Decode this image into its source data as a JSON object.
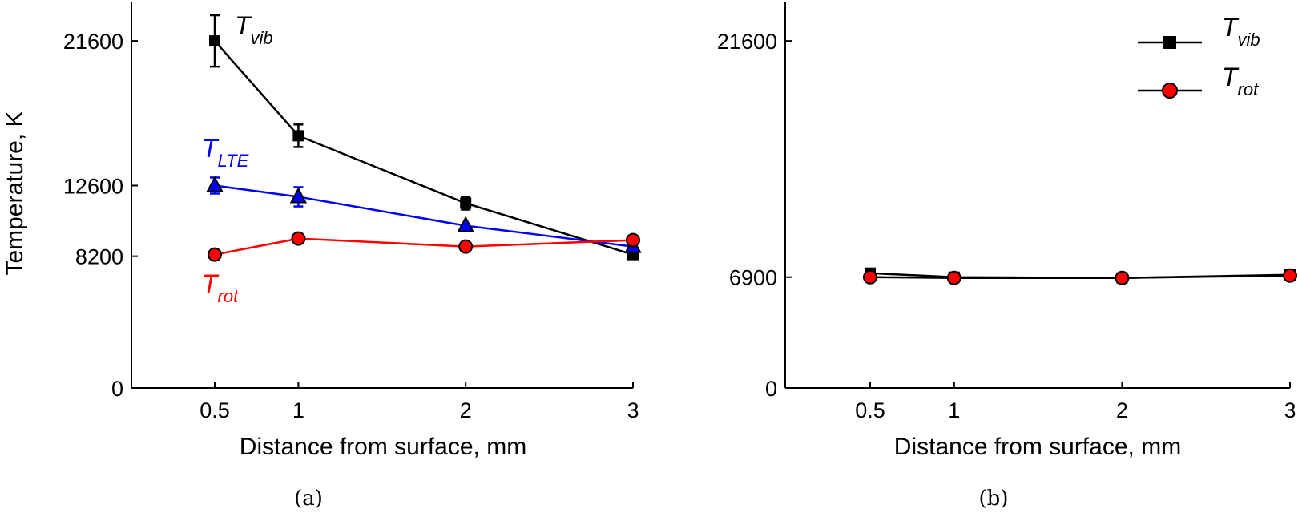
{
  "chart_data": [
    {
      "type": "line",
      "caption": "(a)",
      "xlabel": "Distance from surface, mm",
      "ylabel": "Temperature, K",
      "xlim": [
        0,
        3
      ],
      "ylim": [
        0,
        24000
      ],
      "xticks": [
        0.5,
        1,
        2,
        3
      ],
      "xtick_labels": [
        "0.5",
        "1",
        "2",
        "3"
      ],
      "yticks": [
        0,
        8200,
        12600,
        21600
      ],
      "ytick_labels": [
        "0",
        "8200",
        "12600",
        "21600"
      ],
      "grid": false,
      "legend": "none",
      "series": [
        {
          "name": "T_vib",
          "label_main": "T",
          "label_sub": "vib",
          "color": "#000000",
          "marker": "square",
          "x": [
            0.5,
            1,
            2,
            3
          ],
          "y": [
            21600,
            15700,
            11500,
            8300
          ],
          "error": [
            1600,
            700,
            400,
            0
          ]
        },
        {
          "name": "T_LTE",
          "label_main": "T",
          "label_sub": "LTE",
          "color": "#0000ff",
          "marker": "triangle",
          "x": [
            0.5,
            1,
            2,
            3
          ],
          "y": [
            12600,
            11900,
            10100,
            8800
          ],
          "error": [
            500,
            600,
            0,
            0
          ]
        },
        {
          "name": "T_rot",
          "label_main": "T",
          "label_sub": "rot",
          "color": "#ff0000",
          "marker": "circle",
          "x": [
            0.5,
            1,
            2,
            3
          ],
          "y": [
            8300,
            9300,
            8800,
            9200
          ],
          "error": [
            0,
            0,
            0,
            0
          ]
        }
      ]
    },
    {
      "type": "line",
      "caption": "(b)",
      "xlabel": "Distance from surface, mm",
      "ylabel": "",
      "xlim": [
        0,
        3
      ],
      "ylim": [
        0,
        24000
      ],
      "xticks": [
        0.5,
        1,
        2,
        3
      ],
      "xtick_labels": [
        "0.5",
        "1",
        "2",
        "3"
      ],
      "yticks": [
        0,
        6900,
        21600
      ],
      "ytick_labels": [
        "0",
        "6900",
        "21600"
      ],
      "grid": false,
      "legend": "top-right",
      "series": [
        {
          "name": "T_vib",
          "label_main": "T",
          "label_sub": "vib",
          "color": "#000000",
          "marker": "square",
          "x": [
            0.5,
            1,
            2,
            3
          ],
          "y": [
            7150,
            6900,
            6850,
            7050
          ],
          "error": [
            0,
            0,
            0,
            0
          ]
        },
        {
          "name": "T_rot",
          "label_main": "T",
          "label_sub": "rot",
          "color": "#000000",
          "marker_fill": "#ff0000",
          "marker": "circle",
          "x": [
            0.5,
            1,
            2,
            3
          ],
          "y": [
            6900,
            6850,
            6850,
            7000
          ],
          "error": [
            0,
            0,
            0,
            0
          ]
        }
      ]
    }
  ]
}
